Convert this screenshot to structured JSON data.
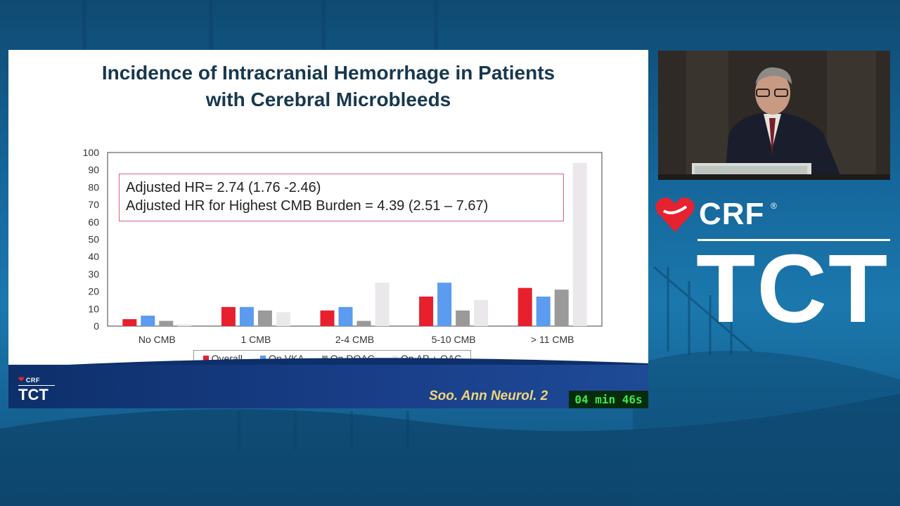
{
  "colors": {
    "overall": "#e8202e",
    "vka": "#5b9bf0",
    "doac": "#9a9a9a",
    "ap_oac": "#ebe8ec",
    "timer_text": "#3ee84c",
    "citation": "#f0d67a"
  },
  "slide": {
    "title_line1": "Incidence of Intracranial Hemorrhage in Patients",
    "title_line2": "with Cerebral Microbleeds",
    "hr_line1": "Adjusted HR= 2.74 (1.76 -2.46)",
    "hr_line2": "Adjusted HR for Highest CMB Burden = 4.39 (2.51 – 7.67)",
    "citation": "Soo. Ann Neurol. 2",
    "timer": "04 min 46s",
    "footer_logo_crf": "CRF",
    "footer_logo_tct": "TCT"
  },
  "brand": {
    "crf": "CRF",
    "registered": "®",
    "tct": "TCT"
  },
  "chart_data": {
    "type": "bar",
    "categories": [
      "No CMB",
      "1 CMB",
      "2-4 CMB",
      "5-10 CMB",
      "> 11 CMB"
    ],
    "series": [
      {
        "name": "Overall",
        "values": [
          4,
          11,
          9,
          17,
          22
        ]
      },
      {
        "name": "On VKA",
        "values": [
          6,
          11,
          11,
          25,
          17
        ]
      },
      {
        "name": "On DOAC",
        "values": [
          3,
          9,
          3,
          9,
          21
        ]
      },
      {
        "name": "On AP + OAC",
        "values": [
          1,
          8,
          25,
          15,
          94
        ]
      }
    ],
    "ylim": [
      0,
      100
    ],
    "yticks": [
      0,
      10,
      20,
      30,
      40,
      50,
      60,
      70,
      80,
      90,
      100
    ],
    "legend_position": "bottom",
    "grid": false
  }
}
